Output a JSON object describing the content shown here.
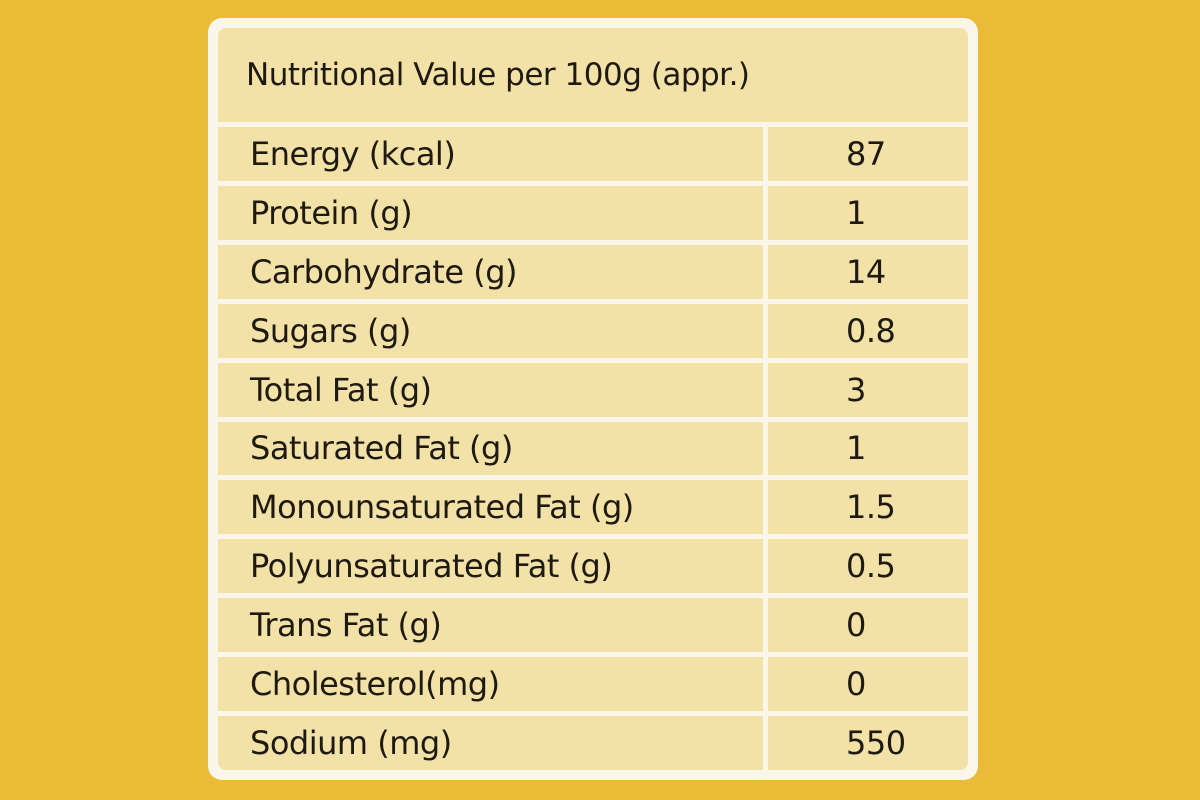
{
  "table": {
    "title": "Nutritional Value per 100g (appr.)",
    "rows": [
      [
        "Energy (kcal)",
        87
      ],
      [
        "Protein (g)",
        1
      ],
      [
        "Carbohydrate (g)",
        14
      ],
      [
        "Sugars (g)",
        0.8
      ],
      [
        "Total Fat (g)",
        3
      ],
      [
        "Saturated Fat (g)",
        1
      ],
      [
        "Monounsaturated Fat (g)",
        1.5
      ],
      [
        "Polyunsaturated Fat (g)",
        0.5
      ],
      [
        "Trans Fat (g)",
        0
      ],
      [
        "Cholesterol(mg)",
        0
      ],
      [
        "Sodium (mg)",
        550
      ]
    ]
  }
}
